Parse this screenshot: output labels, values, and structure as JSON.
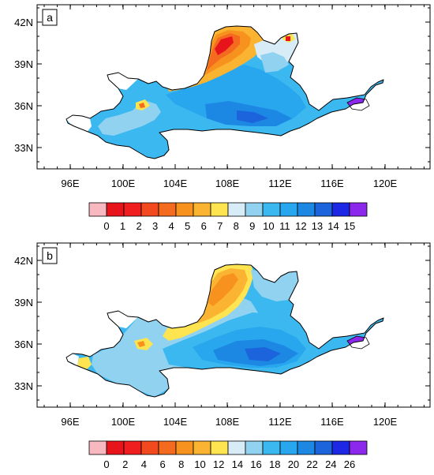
{
  "panels": [
    {
      "id": "a",
      "label": "a",
      "lat_ticks": [
        "42N",
        "39N",
        "36N",
        "33N"
      ],
      "lon_ticks": [
        "96E",
        "100E",
        "104E",
        "108E",
        "112E",
        "116E",
        "120E"
      ],
      "colorbar": {
        "labels": [
          "0",
          "1",
          "2",
          "3",
          "4",
          "5",
          "6",
          "7",
          "8",
          "9",
          "10",
          "11",
          "12",
          "13",
          "14",
          "15"
        ],
        "colors": [
          "#f8b8c0",
          "#e8141c",
          "#f01e1e",
          "#f24a1e",
          "#f46a1e",
          "#f8921e",
          "#fab432",
          "#fde450",
          "#d8ecf8",
          "#90d2f0",
          "#3cb8f0",
          "#28a6ee",
          "#1c88e4",
          "#1c64dc",
          "#1c28e4",
          "#8c28ec"
        ]
      }
    },
    {
      "id": "b",
      "label": "b",
      "lat_ticks": [
        "42N",
        "39N",
        "36N",
        "33N"
      ],
      "lon_ticks": [
        "96E",
        "100E",
        "104E",
        "108E",
        "112E",
        "116E",
        "120E"
      ],
      "colorbar": {
        "labels": [
          "0",
          "2",
          "4",
          "6",
          "8",
          "10",
          "12",
          "14",
          "16",
          "18",
          "20",
          "22",
          "24",
          "26"
        ],
        "colors": [
          "#f8b8c0",
          "#e8141c",
          "#f01e1e",
          "#f24a1e",
          "#f46a1e",
          "#f8921e",
          "#fab432",
          "#fde450",
          "#d8ecf8",
          "#90d2f0",
          "#3cb8f0",
          "#28a6ee",
          "#1c88e4",
          "#1c64dc",
          "#1c28e4",
          "#8c28ec"
        ]
      }
    }
  ]
}
